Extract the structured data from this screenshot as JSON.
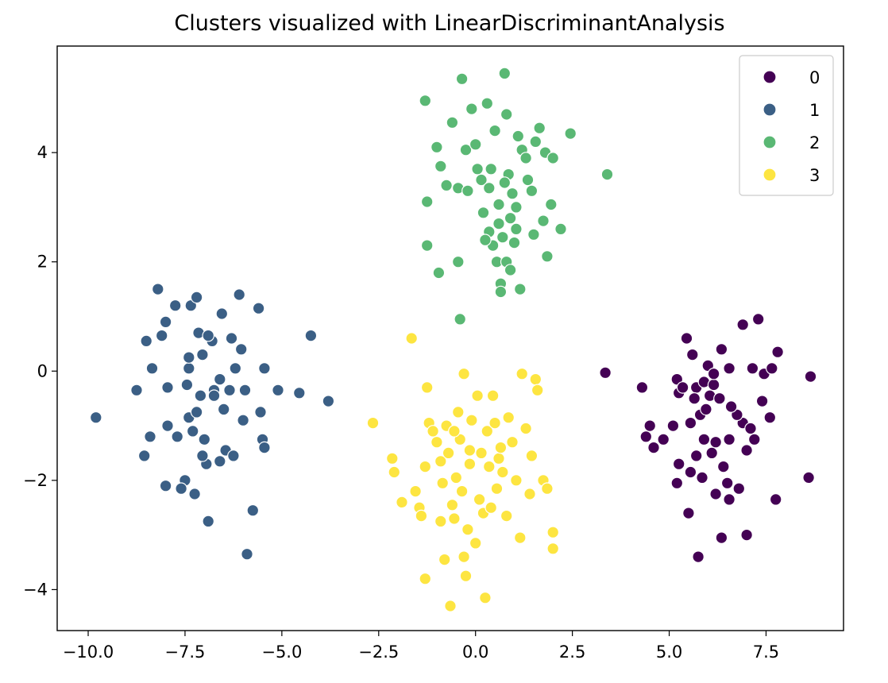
{
  "chart_data": {
    "type": "scatter",
    "title": "Clusters visualized with LinearDiscriminantAnalysis",
    "xlabel": "",
    "ylabel": "",
    "xlim": [
      -10.8,
      9.5
    ],
    "ylim": [
      -4.75,
      5.95
    ],
    "x_ticks": [
      -10.0,
      -7.5,
      -5.0,
      -2.5,
      0.0,
      2.5,
      5.0,
      7.5
    ],
    "x_tick_labels": [
      "−10.0",
      "−7.5",
      "−5.0",
      "−2.5",
      "0.0",
      "2.5",
      "5.0",
      "7.5"
    ],
    "y_ticks": [
      -4,
      -2,
      0,
      2,
      4
    ],
    "y_tick_labels": [
      "−4",
      "−2",
      "0",
      "2",
      "4"
    ],
    "grid": false,
    "legend_position": "upper right",
    "series": [
      {
        "name": "0",
        "color": "#440154",
        "points": [
          [
            3.35,
            -0.03
          ],
          [
            4.3,
            -0.3
          ],
          [
            4.5,
            -1.0
          ],
          [
            4.4,
            -1.2
          ],
          [
            4.6,
            -1.4
          ],
          [
            4.85,
            -1.25
          ],
          [
            5.1,
            -1.0
          ],
          [
            5.2,
            -0.15
          ],
          [
            5.25,
            -0.4
          ],
          [
            5.45,
            0.6
          ],
          [
            5.6,
            0.3
          ],
          [
            5.7,
            -0.3
          ],
          [
            5.9,
            -0.2
          ],
          [
            5.65,
            -0.5
          ],
          [
            5.8,
            -0.8
          ],
          [
            6.0,
            0.1
          ],
          [
            6.15,
            -0.25
          ],
          [
            6.35,
            0.4
          ],
          [
            6.55,
            0.05
          ],
          [
            6.9,
            0.85
          ],
          [
            7.3,
            0.95
          ],
          [
            7.15,
            0.05
          ],
          [
            7.45,
            -0.05
          ],
          [
            7.65,
            0.05
          ],
          [
            7.8,
            0.35
          ],
          [
            8.65,
            -0.1
          ],
          [
            7.4,
            -0.55
          ],
          [
            7.6,
            -0.85
          ],
          [
            6.9,
            -0.95
          ],
          [
            7.1,
            -1.05
          ],
          [
            6.75,
            -0.8
          ],
          [
            6.55,
            -1.25
          ],
          [
            6.2,
            -1.3
          ],
          [
            5.9,
            -1.25
          ],
          [
            5.55,
            -0.95
          ],
          [
            5.7,
            -1.55
          ],
          [
            5.25,
            -1.7
          ],
          [
            5.2,
            -2.05
          ],
          [
            5.55,
            -1.85
          ],
          [
            5.85,
            -1.95
          ],
          [
            6.1,
            -1.5
          ],
          [
            6.4,
            -1.75
          ],
          [
            6.5,
            -2.05
          ],
          [
            6.2,
            -2.25
          ],
          [
            6.55,
            -2.35
          ],
          [
            6.8,
            -2.15
          ],
          [
            7.0,
            -1.45
          ],
          [
            7.2,
            -1.25
          ],
          [
            7.75,
            -2.35
          ],
          [
            8.6,
            -1.95
          ],
          [
            5.5,
            -2.6
          ],
          [
            6.35,
            -3.05
          ],
          [
            7.0,
            -3.0
          ],
          [
            5.75,
            -3.4
          ],
          [
            6.05,
            -0.45
          ],
          [
            5.95,
            -0.7
          ],
          [
            6.3,
            -0.5
          ],
          [
            6.6,
            -0.65
          ],
          [
            6.15,
            -0.05
          ],
          [
            5.35,
            -0.3
          ]
        ]
      },
      {
        "name": "1",
        "color": "#3b5f85",
        "points": [
          [
            -9.8,
            -0.85
          ],
          [
            -8.75,
            -0.35
          ],
          [
            -8.55,
            -1.55
          ],
          [
            -8.5,
            0.55
          ],
          [
            -8.35,
            0.05
          ],
          [
            -8.4,
            -1.2
          ],
          [
            -8.2,
            1.5
          ],
          [
            -8.0,
            0.9
          ],
          [
            -8.1,
            0.65
          ],
          [
            -7.95,
            -0.3
          ],
          [
            -8.0,
            -2.1
          ],
          [
            -7.95,
            -1.0
          ],
          [
            -7.75,
            1.2
          ],
          [
            -7.7,
            -1.2
          ],
          [
            -7.5,
            -2.0
          ],
          [
            -7.6,
            -2.15
          ],
          [
            -7.45,
            -0.25
          ],
          [
            -7.4,
            0.05
          ],
          [
            -7.4,
            -0.85
          ],
          [
            -7.35,
            1.2
          ],
          [
            -7.3,
            -1.1
          ],
          [
            -7.2,
            -0.75
          ],
          [
            -7.2,
            1.35
          ],
          [
            -7.15,
            0.7
          ],
          [
            -7.05,
            0.3
          ],
          [
            -7.1,
            -0.45
          ],
          [
            -7.0,
            -1.25
          ],
          [
            -6.95,
            -1.7
          ],
          [
            -6.9,
            -2.75
          ],
          [
            -6.8,
            0.55
          ],
          [
            -6.75,
            -0.35
          ],
          [
            -6.6,
            -0.15
          ],
          [
            -6.55,
            1.05
          ],
          [
            -6.5,
            -0.7
          ],
          [
            -6.45,
            -1.45
          ],
          [
            -6.35,
            -0.35
          ],
          [
            -6.25,
            -1.55
          ],
          [
            -6.2,
            0.05
          ],
          [
            -6.1,
            1.4
          ],
          [
            -6.05,
            0.4
          ],
          [
            -6.0,
            -0.9
          ],
          [
            -5.95,
            -0.35
          ],
          [
            -5.9,
            -3.35
          ],
          [
            -5.75,
            -2.55
          ],
          [
            -5.6,
            1.15
          ],
          [
            -5.55,
            -0.75
          ],
          [
            -5.5,
            -1.25
          ],
          [
            -5.45,
            0.05
          ],
          [
            -5.45,
            -1.4
          ],
          [
            -5.1,
            -0.35
          ],
          [
            -4.55,
            -0.4
          ],
          [
            -4.25,
            0.65
          ],
          [
            -3.8,
            -0.55
          ],
          [
            -6.6,
            -1.65
          ],
          [
            -7.05,
            -1.55
          ],
          [
            -7.25,
            -2.25
          ],
          [
            -6.3,
            0.6
          ],
          [
            -6.9,
            0.65
          ],
          [
            -7.4,
            0.25
          ],
          [
            -6.75,
            -0.45
          ]
        ]
      },
      {
        "name": "2",
        "color": "#5ab874",
        "points": [
          [
            -1.3,
            4.95
          ],
          [
            -1.0,
            4.1
          ],
          [
            -0.9,
            3.75
          ],
          [
            -0.75,
            3.4
          ],
          [
            -0.6,
            4.55
          ],
          [
            -0.35,
            5.35
          ],
          [
            -0.25,
            4.05
          ],
          [
            -0.1,
            4.8
          ],
          [
            0.0,
            4.15
          ],
          [
            0.15,
            3.5
          ],
          [
            0.3,
            4.9
          ],
          [
            0.35,
            3.35
          ],
          [
            0.5,
            4.4
          ],
          [
            0.6,
            3.05
          ],
          [
            0.75,
            5.45
          ],
          [
            0.8,
            4.7
          ],
          [
            0.85,
            3.6
          ],
          [
            0.95,
            3.25
          ],
          [
            1.05,
            3.0
          ],
          [
            1.1,
            4.3
          ],
          [
            1.2,
            4.05
          ],
          [
            1.3,
            3.9
          ],
          [
            1.45,
            3.3
          ],
          [
            1.55,
            4.2
          ],
          [
            1.65,
            4.45
          ],
          [
            1.8,
            4.0
          ],
          [
            2.0,
            3.9
          ],
          [
            2.45,
            4.35
          ],
          [
            3.4,
            3.6
          ],
          [
            -1.25,
            3.1
          ],
          [
            -0.45,
            3.35
          ],
          [
            -0.2,
            3.3
          ],
          [
            0.2,
            2.9
          ],
          [
            0.35,
            2.55
          ],
          [
            0.45,
            2.3
          ],
          [
            0.55,
            2.0
          ],
          [
            0.6,
            2.7
          ],
          [
            0.7,
            2.45
          ],
          [
            0.8,
            2.0
          ],
          [
            0.9,
            2.8
          ],
          [
            1.0,
            2.35
          ],
          [
            1.05,
            2.6
          ],
          [
            1.5,
            2.5
          ],
          [
            1.75,
            2.75
          ],
          [
            1.95,
            3.05
          ],
          [
            2.2,
            2.6
          ],
          [
            1.85,
            2.1
          ],
          [
            -1.25,
            2.3
          ],
          [
            -0.45,
            2.0
          ],
          [
            -0.95,
            1.8
          ],
          [
            0.65,
            1.6
          ],
          [
            0.65,
            1.45
          ],
          [
            0.9,
            1.85
          ],
          [
            1.15,
            1.5
          ],
          [
            -0.4,
            0.95
          ],
          [
            0.75,
            3.45
          ],
          [
            0.4,
            3.7
          ],
          [
            0.05,
            3.7
          ],
          [
            1.35,
            3.5
          ],
          [
            0.25,
            2.4
          ]
        ]
      },
      {
        "name": "3",
        "color": "#fde541",
        "points": [
          [
            -1.65,
            0.6
          ],
          [
            -2.65,
            -0.95
          ],
          [
            -2.15,
            -1.6
          ],
          [
            -2.1,
            -1.85
          ],
          [
            -1.9,
            -2.4
          ],
          [
            -1.55,
            -2.2
          ],
          [
            -1.45,
            -2.5
          ],
          [
            -1.4,
            -2.65
          ],
          [
            -1.3,
            -1.75
          ],
          [
            -1.25,
            -0.3
          ],
          [
            -1.2,
            -0.95
          ],
          [
            -1.1,
            -1.1
          ],
          [
            -1.0,
            -1.3
          ],
          [
            -0.9,
            -1.65
          ],
          [
            -0.85,
            -2.05
          ],
          [
            -0.9,
            -2.75
          ],
          [
            -0.75,
            -1.0
          ],
          [
            -0.7,
            -1.5
          ],
          [
            -0.6,
            -2.45
          ],
          [
            -0.55,
            -2.7
          ],
          [
            -0.5,
            -1.95
          ],
          [
            -0.45,
            -0.75
          ],
          [
            -0.4,
            -1.25
          ],
          [
            -0.35,
            -2.2
          ],
          [
            -0.3,
            -3.4
          ],
          [
            -0.25,
            -3.75
          ],
          [
            -0.2,
            -2.9
          ],
          [
            -0.15,
            -1.7
          ],
          [
            -0.1,
            -0.9
          ],
          [
            0.0,
            -3.15
          ],
          [
            0.1,
            -2.35
          ],
          [
            0.15,
            -1.5
          ],
          [
            0.2,
            -2.6
          ],
          [
            0.3,
            -1.1
          ],
          [
            0.35,
            -1.75
          ],
          [
            0.4,
            -2.5
          ],
          [
            0.5,
            -0.95
          ],
          [
            0.55,
            -2.15
          ],
          [
            0.6,
            -1.6
          ],
          [
            0.7,
            -1.85
          ],
          [
            0.8,
            -2.65
          ],
          [
            0.85,
            -0.85
          ],
          [
            0.95,
            -1.3
          ],
          [
            1.05,
            -2.0
          ],
          [
            1.15,
            -3.05
          ],
          [
            1.2,
            -0.05
          ],
          [
            1.3,
            -1.05
          ],
          [
            1.4,
            -2.25
          ],
          [
            1.45,
            -1.55
          ],
          [
            1.55,
            -0.15
          ],
          [
            1.6,
            -0.35
          ],
          [
            1.75,
            -2.0
          ],
          [
            1.85,
            -2.15
          ],
          [
            2.0,
            -2.95
          ],
          [
            2.0,
            -3.25
          ],
          [
            -1.3,
            -3.8
          ],
          [
            -0.65,
            -4.3
          ],
          [
            0.25,
            -4.15
          ],
          [
            -0.8,
            -3.45
          ],
          [
            0.45,
            -0.45
          ],
          [
            -0.3,
            -0.05
          ],
          [
            0.05,
            -0.45
          ],
          [
            -0.15,
            -1.45
          ],
          [
            0.65,
            -1.4
          ],
          [
            -0.55,
            -1.1
          ]
        ]
      }
    ]
  }
}
